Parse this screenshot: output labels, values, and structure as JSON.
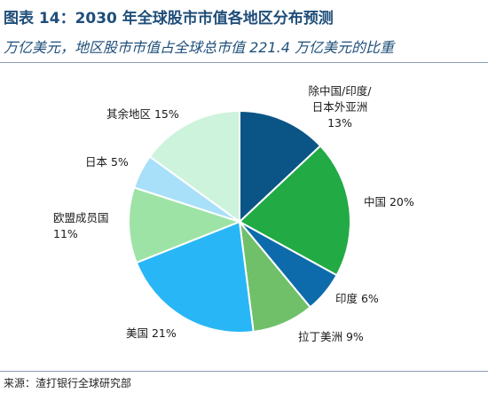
{
  "figure": {
    "title": "图表 14：2030 年全球股市市值各地区分布预测",
    "subtitle": "万亿美元，地区股市市值占全球总市值 221.4 万亿美元的比重",
    "source": "来源：渣打银行全球研究部"
  },
  "chart_data": {
    "type": "pie",
    "title": "",
    "start_angle_deg": 0,
    "direction": "clockwise",
    "slices": [
      {
        "name": "除中国/印度/日本外亚洲",
        "value": 13,
        "label_lines": [
          "除中国/印度/",
          "日本外亚洲",
          "13%"
        ],
        "color": "#0b5586"
      },
      {
        "name": "中国",
        "value": 20,
        "label_lines": [
          "中国 20%"
        ],
        "color": "#22aa44"
      },
      {
        "name": "印度",
        "value": 6,
        "label_lines": [
          "印度 6%"
        ],
        "color": "#0d6bab"
      },
      {
        "name": "拉丁美洲",
        "value": 9,
        "label_lines": [
          "拉丁美洲 9%"
        ],
        "color": "#70c069"
      },
      {
        "name": "美国",
        "value": 21,
        "label_lines": [
          "美国 21%"
        ],
        "color": "#29b6f6"
      },
      {
        "name": "欧盟成员国",
        "value": 11,
        "label_lines": [
          "欧盟成员国",
          "11%"
        ],
        "color": "#9ee3a6"
      },
      {
        "name": "日本",
        "value": 5,
        "label_lines": [
          "日本 5%"
        ],
        "color": "#a9e0f9"
      },
      {
        "name": "其余地区",
        "value": 15,
        "label_lines": [
          "其余地区 15%"
        ],
        "color": "#cdf3dc"
      }
    ]
  }
}
